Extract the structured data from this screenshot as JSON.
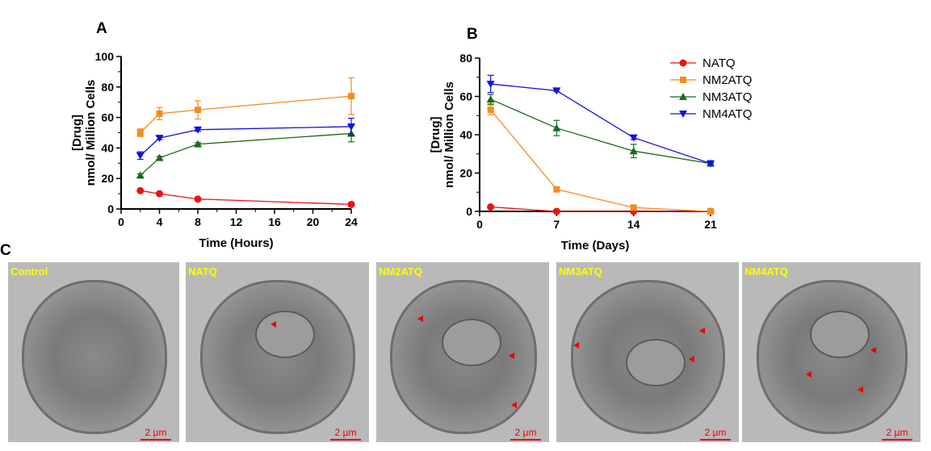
{
  "chart_data": [
    {
      "panel": "A",
      "type": "line",
      "xlabel": "Time (Hours)",
      "ylabel": [
        "[Drug]",
        "nmol/ Million Cells"
      ],
      "xlim": [
        0,
        24
      ],
      "ylim": [
        0,
        100
      ],
      "xticks": [
        0,
        4,
        8,
        12,
        16,
        20,
        24
      ],
      "yticks": [
        0,
        20,
        40,
        60,
        80,
        100
      ],
      "x": [
        2,
        4,
        8,
        24
      ],
      "series": [
        {
          "name": "NATQ",
          "color": "#ee1111",
          "marker": "circle",
          "values": [
            12,
            10,
            6.5,
            3
          ],
          "errors": [
            0.5,
            0.5,
            0.5,
            0.5
          ]
        },
        {
          "name": "NM2ATQ",
          "color": "#f28c1e",
          "marker": "square",
          "values": [
            50,
            62.5,
            65,
            74
          ],
          "errors": [
            2.5,
            4,
            6,
            12
          ]
        },
        {
          "name": "NM3ATQ",
          "color": "#1a6b1a",
          "marker": "triangle-up",
          "values": [
            22,
            33.5,
            42.5,
            49.5
          ],
          "errors": [
            1,
            1,
            1,
            5.5
          ]
        },
        {
          "name": "NM4ATQ",
          "color": "#1010dd",
          "marker": "triangle-down",
          "values": [
            35,
            46.5,
            52,
            54
          ],
          "errors": [
            2.5,
            1,
            1,
            5.5
          ]
        }
      ]
    },
    {
      "panel": "B",
      "type": "line",
      "xlabel": "Time (Days)",
      "ylabel": [
        "[Drug]",
        "nmol/ Million Cells"
      ],
      "xlim": [
        0,
        21
      ],
      "ylim": [
        0,
        80
      ],
      "xticks": [
        0,
        7,
        14,
        21
      ],
      "yticks": [
        0,
        20,
        40,
        60,
        80
      ],
      "x": [
        1,
        7,
        14,
        21
      ],
      "legend": "top-right",
      "series": [
        {
          "name": "NATQ",
          "color": "#ee1111",
          "marker": "circle",
          "values": [
            2.3,
            0,
            0,
            0
          ],
          "errors": [
            0.3,
            0,
            0,
            0
          ]
        },
        {
          "name": "NM2ATQ",
          "color": "#f28c1e",
          "marker": "square",
          "values": [
            53,
            11.5,
            2,
            0
          ],
          "errors": [
            2.5,
            1,
            0.5,
            0
          ]
        },
        {
          "name": "NM3ATQ",
          "color": "#1a6b1a",
          "marker": "triangle-up",
          "values": [
            58.5,
            43.5,
            31.5,
            25
          ],
          "errors": [
            2.5,
            4,
            3.5,
            1
          ]
        },
        {
          "name": "NM4ATQ",
          "color": "#1010dd",
          "marker": "triangle-down",
          "values": [
            66.5,
            63,
            38.5,
            25
          ],
          "errors": [
            4.5,
            0.5,
            1,
            0.5
          ]
        }
      ]
    }
  ],
  "panel_c": {
    "label": "C",
    "images": [
      {
        "label": "Control",
        "scale": "2 µm"
      },
      {
        "label": "NATQ",
        "scale": "2 µm"
      },
      {
        "label": "NM2ATQ",
        "scale": "2 µm"
      },
      {
        "label": "NM3ATQ",
        "scale": "2 µm"
      },
      {
        "label": "NM4ATQ",
        "scale": "2 µm"
      }
    ]
  },
  "labels": {
    "a": "A",
    "b": "B"
  }
}
